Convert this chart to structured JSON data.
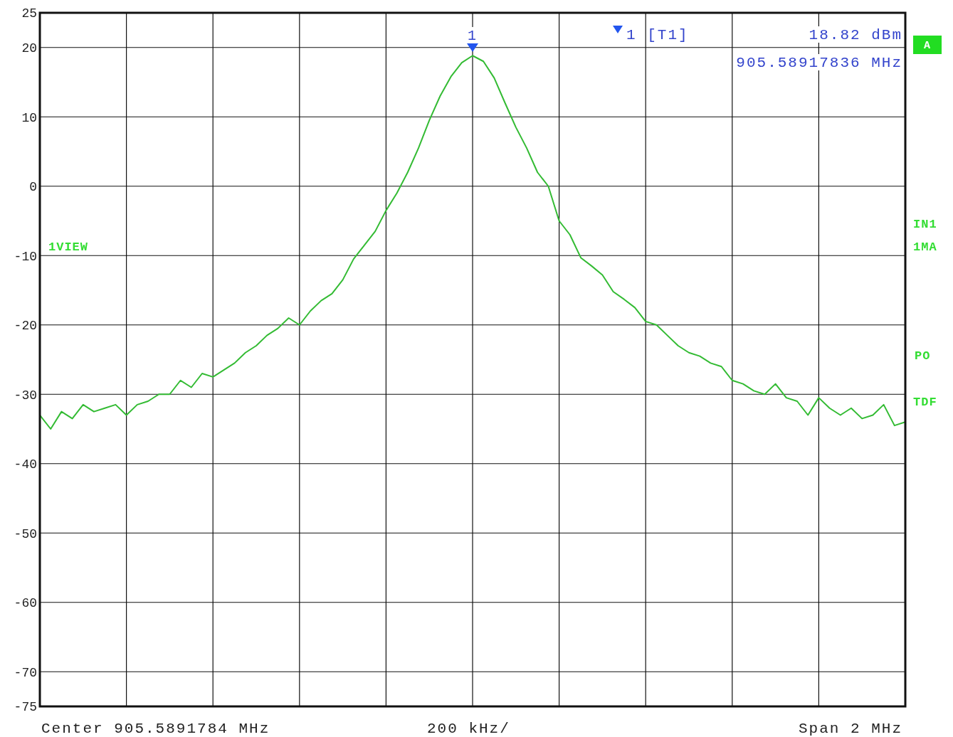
{
  "chart_data": {
    "type": "line",
    "ylim": [
      -75,
      25
    ],
    "categories": [
      null,
      null,
      null,
      null,
      null,
      null,
      null,
      null,
      null,
      null,
      null,
      null,
      null,
      null,
      null,
      null,
      null,
      null,
      null,
      null,
      null,
      null,
      null,
      null,
      null,
      null,
      null,
      null,
      null,
      null,
      null,
      null,
      null,
      null,
      null,
      null,
      null,
      null,
      null,
      null,
      null,
      null,
      null,
      null,
      null,
      null,
      null,
      null,
      null,
      null,
      null,
      null,
      null,
      null,
      null,
      null,
      null,
      null,
      null,
      null,
      null,
      null,
      null,
      null,
      null,
      null,
      null,
      null,
      null,
      null,
      null,
      null,
      null,
      null,
      null,
      null,
      null,
      null,
      null,
      null,
      null
    ],
    "yticks": [
      -75,
      -70,
      -60,
      -50,
      -40,
      -30,
      -20,
      -10,
      0,
      10,
      20,
      25
    ],
    "grid": true,
    "marker": "none",
    "line_style": "solid",
    "series": [
      {
        "color": "#33bb33",
        "values": [
          -33,
          -35,
          -32.5,
          -33.5,
          -31.5,
          -32.5,
          -32,
          -31.5,
          -33,
          -31.5,
          -31,
          -30,
          -30,
          -28,
          -29,
          -27,
          -27.5,
          -26.5,
          -25.5,
          -24,
          -23,
          -21.5,
          -20.5,
          -19,
          -20,
          -18,
          -16.5,
          -15.5,
          -13.5,
          -10.5,
          -8.5,
          -6.5,
          -3.5,
          -1,
          2,
          5.5,
          9.5,
          13,
          15.8,
          17.8,
          18.82,
          18,
          15.6,
          12,
          8.5,
          5.5,
          2,
          0,
          -5,
          -7,
          -10.3,
          -11.5,
          -12.8,
          -15.2,
          -16.3,
          -17.5,
          -19.5,
          -20,
          -21.5,
          -23,
          -24,
          -24.5,
          -25.5,
          -26,
          -28,
          -28.5,
          -29.5,
          -30,
          -28.5,
          -30.5,
          -31,
          -33,
          -30.5,
          -32,
          -33,
          -32,
          -33.5,
          -33,
          -31.5,
          -34.5,
          -34
        ]
      }
    ],
    "annotations": [
      "Center 905.5891784 MHz",
      "200 kHz/",
      "Span 2 MHz",
      "1VIEW",
      "A",
      "IN1",
      "1MA",
      "PO",
      "TDF",
      "1 [T1]",
      "18.82 dBm",
      "905.58917836 MHz",
      "1"
    ]
  }
}
